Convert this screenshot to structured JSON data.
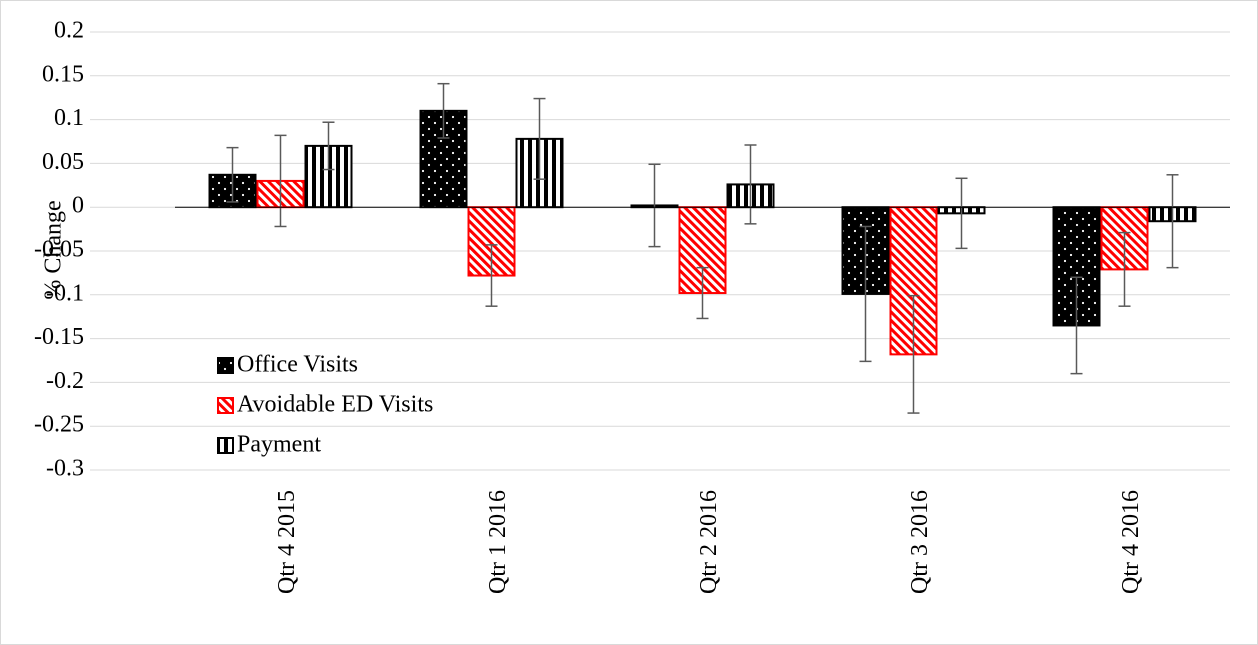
{
  "chart_data": {
    "type": "bar",
    "y_label": "% Change",
    "categories": [
      "Qtr 4 2015",
      "Qtr 1 2016",
      "Qtr 2 2016",
      "Qtr 3 2016",
      "Qtr 4 2016"
    ],
    "series": [
      {
        "name": "Office Visits",
        "color": "#000000",
        "pattern": "dots",
        "values": [
          0.037,
          0.11,
          0.002,
          -0.099,
          -0.135
        ],
        "errors": [
          0.031,
          0.031,
          0.047,
          0.077,
          0.055
        ]
      },
      {
        "name": "Avoidable ED Visits",
        "color": "#ff0000",
        "pattern": "hatch",
        "values": [
          0.03,
          -0.078,
          -0.098,
          -0.168,
          -0.071
        ],
        "errors": [
          0.052,
          0.035,
          0.029,
          0.067,
          0.042
        ]
      },
      {
        "name": "Payment",
        "color": "#000000",
        "pattern": "vertical",
        "values": [
          0.07,
          0.078,
          0.026,
          -0.007,
          -0.016
        ],
        "errors": [
          0.027,
          0.046,
          0.045,
          0.04,
          0.053
        ]
      }
    ],
    "ylim": [
      -0.3,
      0.2
    ],
    "yticks": [
      -0.3,
      -0.25,
      -0.2,
      -0.15,
      -0.1,
      -0.05,
      0,
      0.05,
      0.1,
      0.15,
      0.2
    ],
    "grid": true,
    "legend": "bottom-left"
  }
}
